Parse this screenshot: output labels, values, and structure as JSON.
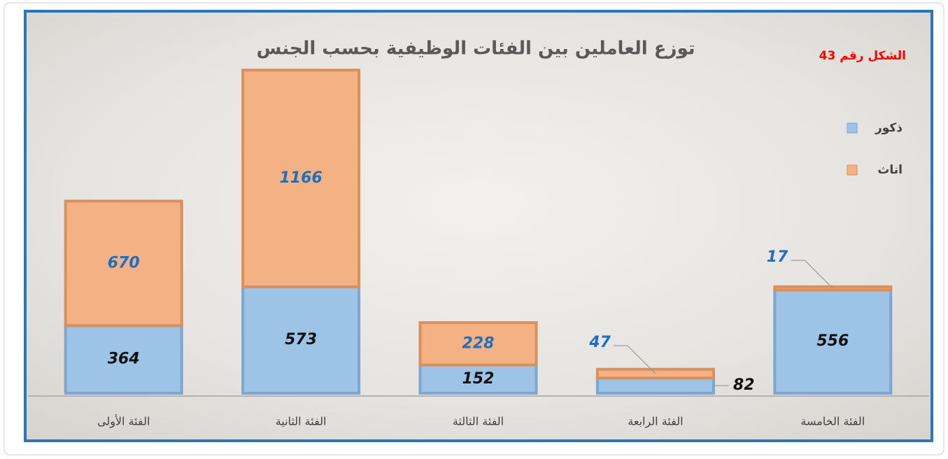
{
  "chart_data": {
    "type": "stacked_bar",
    "title": "توزع العاملين بين الفئات الوظيفية بحسب الجنس",
    "annotation": "الشكل رقم 43",
    "categories": [
      "الفئة الأولى",
      "الفئة الثانية",
      "الفئة الثالثة",
      "الفئة الرابعة",
      "الفئة الخامسة"
    ],
    "series": [
      {
        "name": "ذكور",
        "color": "#9dc3e6",
        "values": [
          364,
          573,
          152,
          82,
          556
        ]
      },
      {
        "name": "اناث",
        "color": "#f4b183",
        "values": [
          670,
          1166,
          228,
          47,
          17
        ]
      }
    ],
    "ylim": [
      0,
      1800
    ]
  }
}
